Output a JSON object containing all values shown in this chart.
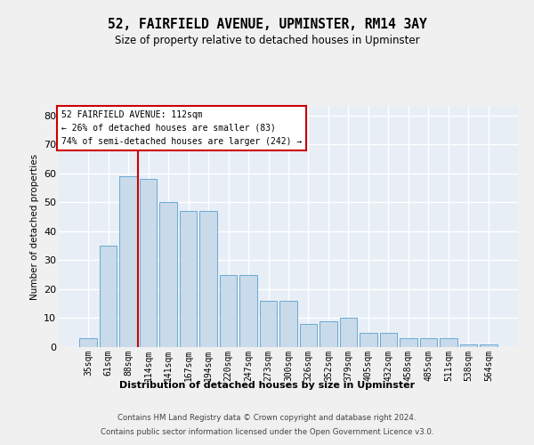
{
  "title": "52, FAIRFIELD AVENUE, UPMINSTER, RM14 3AY",
  "subtitle": "Size of property relative to detached houses in Upminster",
  "xlabel": "Distribution of detached houses by size in Upminster",
  "ylabel": "Number of detached properties",
  "categories": [
    "35sqm",
    "61sqm",
    "88sqm",
    "114sqm",
    "141sqm",
    "167sqm",
    "194sqm",
    "220sqm",
    "247sqm",
    "273sqm",
    "300sqm",
    "326sqm",
    "352sqm",
    "379sqm",
    "405sqm",
    "432sqm",
    "458sqm",
    "485sqm",
    "511sqm",
    "538sqm",
    "564sqm"
  ],
  "values": [
    3,
    35,
    59,
    58,
    50,
    47,
    47,
    25,
    25,
    16,
    16,
    8,
    9,
    10,
    5,
    5,
    3,
    3,
    3,
    1,
    1
  ],
  "bar_color": "#c9daea",
  "bar_edge_color": "#6aaad4",
  "bg_color": "#e8eef6",
  "grid_color": "#ffffff",
  "vline_color": "#cc0000",
  "vline_x": 2.5,
  "annotation_line1": "52 FAIRFIELD AVENUE: 112sqm",
  "annotation_line2": "← 26% of detached houses are smaller (83)",
  "annotation_line3": "74% of semi-detached houses are larger (242) →",
  "annotation_box_facecolor": "#ffffff",
  "annotation_box_edgecolor": "#cc0000",
  "ylim_max": 83,
  "yticks": [
    0,
    10,
    20,
    30,
    40,
    50,
    60,
    70,
    80
  ],
  "fig_bg_color": "#f0f0f0",
  "footer_line1": "Contains HM Land Registry data © Crown copyright and database right 2024.",
  "footer_line2": "Contains public sector information licensed under the Open Government Licence v3.0."
}
